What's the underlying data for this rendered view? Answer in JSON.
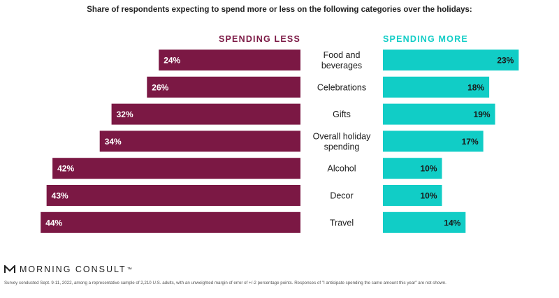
{
  "title": "Share of respondents expecting to spend more or less on the following categories over the holidays:",
  "brand": {
    "name": "MORNING CONSULT",
    "mark": "™"
  },
  "footnote": "Survey conducted Sept. 9-11, 2022, among a representative sample of 2,210 U.S. adults, with an unweighted margin of error of +/-2 percentage points. Responses of \"I anticipate spending the same amount this year\" are not shown.",
  "colors": {
    "less": "#7b1844",
    "more": "#11cdc6",
    "background": "#ffffff"
  },
  "chart_data": {
    "type": "bar",
    "orientation": "horizontal-diverging",
    "title": "Share of respondents expecting to spend more or less on the following categories over the holidays:",
    "categories": [
      [
        "Food and",
        "beverages"
      ],
      [
        "Celebrations"
      ],
      [
        "Gifts"
      ],
      [
        "Overall holiday",
        "spending"
      ],
      [
        "Alcohol"
      ],
      [
        "Decor"
      ],
      [
        "Travel"
      ]
    ],
    "series": [
      {
        "name": "SPENDING LESS",
        "side": "left",
        "values": [
          24,
          26,
          32,
          34,
          42,
          43,
          44
        ],
        "labels": [
          "24%",
          "26%",
          "32%",
          "34%",
          "42%",
          "43%",
          "44%"
        ]
      },
      {
        "name": "SPENDING MORE",
        "side": "right",
        "values": [
          23,
          18,
          19,
          17,
          10,
          10,
          14
        ],
        "labels": [
          "23%",
          "18%",
          "19%",
          "17%",
          "10%",
          "10%",
          "14%"
        ]
      }
    ],
    "xlim": [
      0,
      45
    ],
    "unit": "%"
  }
}
